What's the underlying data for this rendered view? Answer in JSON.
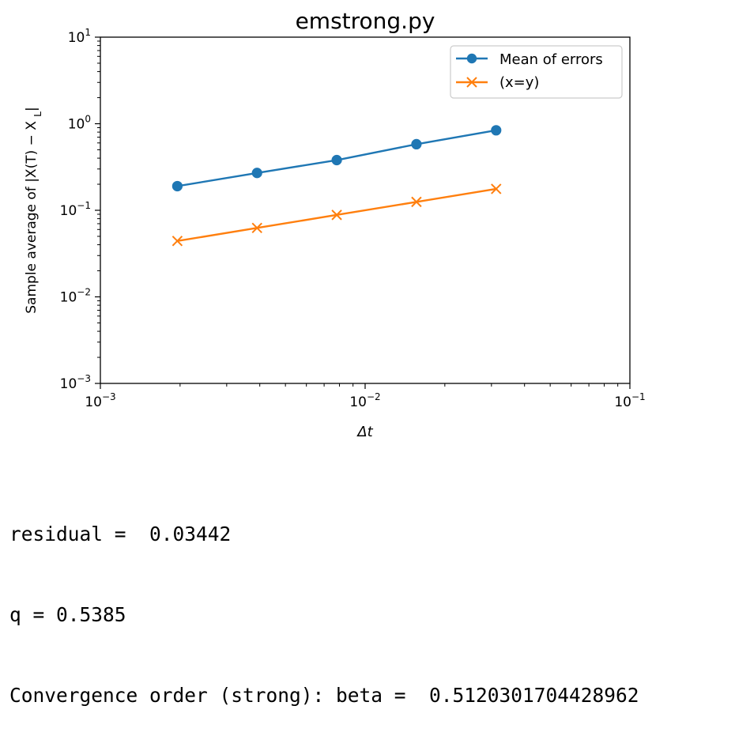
{
  "chart_data": {
    "type": "line",
    "title": "emstrong.py",
    "xlabel": "Δt",
    "ylabel": "Sample average of |X(T) − X_L|",
    "xscale": "log",
    "yscale": "log",
    "xlim": [
      0.001,
      0.1
    ],
    "ylim": [
      0.001,
      10
    ],
    "x_ticks": [
      {
        "base": "10",
        "exp": "−3",
        "value": 0.001
      },
      {
        "base": "10",
        "exp": "−2",
        "value": 0.01
      },
      {
        "base": "10",
        "exp": "−1",
        "value": 0.1
      }
    ],
    "y_ticks": [
      {
        "base": "10",
        "exp": "−3",
        "value": 0.001
      },
      {
        "base": "10",
        "exp": "−2",
        "value": 0.01
      },
      {
        "base": "10",
        "exp": "−1",
        "value": 0.1
      },
      {
        "base": "10",
        "exp": "0",
        "value": 1
      },
      {
        "base": "10",
        "exp": "1",
        "value": 10
      }
    ],
    "grid": false,
    "legend_position": "top-right",
    "series": [
      {
        "name": "Mean of errors",
        "color": "#1f77b4",
        "marker": "circle",
        "x": [
          0.001953125,
          0.00390625,
          0.0078125,
          0.015625,
          0.03125
        ],
        "y": [
          0.19,
          0.27,
          0.38,
          0.58,
          0.84
        ]
      },
      {
        "name": "(x=y)",
        "color": "#ff7f0e",
        "marker": "x",
        "x": [
          0.001953125,
          0.00390625,
          0.0078125,
          0.015625,
          0.03125
        ],
        "y": [
          0.0442,
          0.0625,
          0.0884,
          0.125,
          0.1768
        ]
      }
    ]
  },
  "console": {
    "residual_line": "residual =  0.03442",
    "q_line": "q = 0.5385",
    "beta_line": "Convergence order (strong): beta =  0.5120301704428962"
  }
}
